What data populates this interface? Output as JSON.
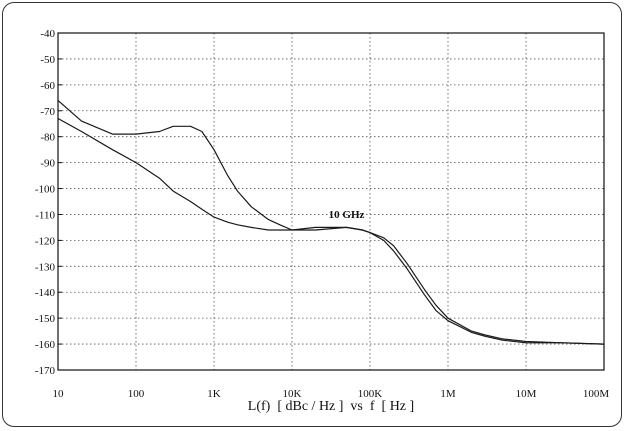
{
  "chart_data": {
    "type": "line",
    "title": "",
    "xlabel": "L(f)  [ dBc / Hz ]  vs  f  [ Hz ]",
    "ylabel": "",
    "x_scale": "log",
    "xlim": [
      10,
      100000000
    ],
    "ylim": [
      -170,
      -40
    ],
    "grid": true,
    "x_ticks": [
      "10",
      "100",
      "1K",
      "10K",
      "100K",
      "1M",
      "10M",
      "100M"
    ],
    "y_ticks": [
      "-40",
      "-50",
      "-60",
      "-70",
      "-80",
      "-90",
      "-100",
      "-110",
      "-120",
      "-130",
      "-140",
      "-150",
      "-160",
      "-170"
    ],
    "annotations": [
      {
        "text": "10 GHz",
        "x": 50000,
        "y": -113
      }
    ],
    "series": [
      {
        "x": [
          10,
          20,
          50,
          100,
          200,
          300,
          500,
          700,
          1000,
          1500,
          2000,
          3000,
          5000,
          7000,
          10000,
          20000,
          50000,
          80000,
          100000,
          150000,
          200000,
          300000,
          500000,
          700000,
          1000000,
          2000000,
          3000000,
          5000000,
          10000000,
          30000000,
          100000000
        ],
        "y": [
          -66,
          -74,
          -79,
          -79,
          -78,
          -76,
          -76,
          -78,
          -85,
          -95,
          -101,
          -107,
          -112,
          -114,
          -116,
          -116,
          -115,
          -116,
          -117,
          -120,
          -124,
          -131,
          -141,
          -147,
          -151,
          -155.5,
          -157,
          -158.5,
          -159.5,
          -159.5,
          -160
        ]
      },
      {
        "x": [
          10,
          20,
          50,
          100,
          200,
          300,
          500,
          700,
          1000,
          1500,
          2000,
          3000,
          5000,
          7000,
          10000,
          20000,
          50000,
          80000,
          100000,
          150000,
          200000,
          300000,
          500000,
          700000,
          1000000,
          2000000,
          3000000,
          5000000,
          10000000,
          30000000,
          100000000
        ],
        "y": [
          -73,
          -78,
          -85,
          -90,
          -96,
          -101,
          -105,
          -108,
          -111,
          -113,
          -114,
          -115,
          -116,
          -116,
          -116,
          -115,
          -115,
          -116,
          -117,
          -119,
          -122,
          -129,
          -139,
          -145,
          -150,
          -155,
          -156.5,
          -158,
          -159,
          -159.5,
          -160
        ]
      }
    ]
  }
}
